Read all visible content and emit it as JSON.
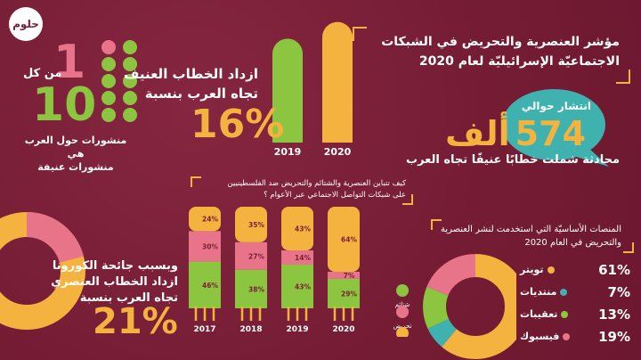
{
  "logo": {
    "text": "حلوم"
  },
  "colors": {
    "background": "#7a1f36",
    "yellow": "#f4b23e",
    "green": "#8cc540",
    "pink": "#e8748a",
    "teal": "#3fb2b0"
  },
  "header": {
    "title_line1": "مؤشر العنصرية والتحريض في الشبكات",
    "title_line2": "الاجتماعيّة الإسرائيليّة لعام 2020"
  },
  "speech": {
    "prefix": "انتشار حوالي",
    "number": "574",
    "unit": "ألف",
    "caption": "محادثة شملت خطابًا عنيفًا تجاه العرب"
  },
  "ratio": {
    "one": "1",
    "from_each": "من كل",
    "ten": "10",
    "caption_line1": "منشورات حول العرب هي",
    "caption_line2": "منشورات عنيفة",
    "dots_total": 10,
    "dots_highlight": 1
  },
  "growth": {
    "line1": "ازداد الخطاب العنيف",
    "line2": "تجاه العرب بنسبة",
    "percent": "16%"
  },
  "corona": {
    "line1": "وبسبب جائحة الكورونا",
    "line2": "ازداد الخطاب العنصري",
    "line3": "تجاه العرب بنسبة",
    "percent": "21%",
    "donut_fraction": 0.21
  },
  "stacked_title": {
    "line1": "كيف تتباين العنصرية والشتائم والتحريض ضد الفلسطينيين",
    "line2": "على شبكات التواصل الاجتماعي عبر الأعوام ؟"
  },
  "platforms_title": {
    "line1": "المنصات الأساسيّة التي استخدمت لنشر العنصرية",
    "line2": "والتحريض في العام 2020"
  },
  "chart_data": [
    {
      "type": "bar",
      "title": "",
      "categories": [
        "2019",
        "2020"
      ],
      "values": [
        100,
        116
      ],
      "ylim": [
        0,
        120
      ]
    },
    {
      "type": "bar",
      "stacked": true,
      "title": "كيف تتباين العنصرية والشتائم والتحريض ضد الفلسطينيين على شبكات التواصل الاجتماعي عبر الأعوام ؟",
      "categories": [
        "2017",
        "2018",
        "2019",
        "2020"
      ],
      "series": [
        {
          "name": "شتائم",
          "color": "#8cc540",
          "values": [
            46,
            38,
            43,
            29
          ],
          "labels": [
            "46%",
            "38%",
            "43%",
            "29%"
          ]
        },
        {
          "name": "تحريض",
          "color": "#e8748a",
          "values": [
            30,
            27,
            14,
            7
          ],
          "labels": [
            "30%",
            "27%",
            "14%",
            "7%"
          ]
        },
        {
          "name": "عنصرية",
          "color": "#f4b23e",
          "values": [
            24,
            35,
            43,
            64
          ],
          "labels": [
            "24%",
            "35%",
            "43%",
            "64%"
          ]
        }
      ],
      "ylim": [
        0,
        100
      ],
      "legend": "right"
    },
    {
      "type": "pie",
      "donut": true,
      "title": "المنصات الأساسيّة التي استخدمت لنشر العنصرية والتحريض في العام 2020",
      "slices": [
        {
          "label": "تويتر",
          "value": 61,
          "text": "61%",
          "color": "#f4b23e"
        },
        {
          "label": "منتديات",
          "value": 7,
          "text": "7%",
          "color": "#3fb2b0"
        },
        {
          "label": "تعقيبات",
          "value": 13,
          "text": "13%",
          "color": "#8cc540"
        },
        {
          "label": "فيسبوك",
          "value": 19,
          "text": "19%",
          "color": "#e8748a"
        }
      ]
    }
  ]
}
